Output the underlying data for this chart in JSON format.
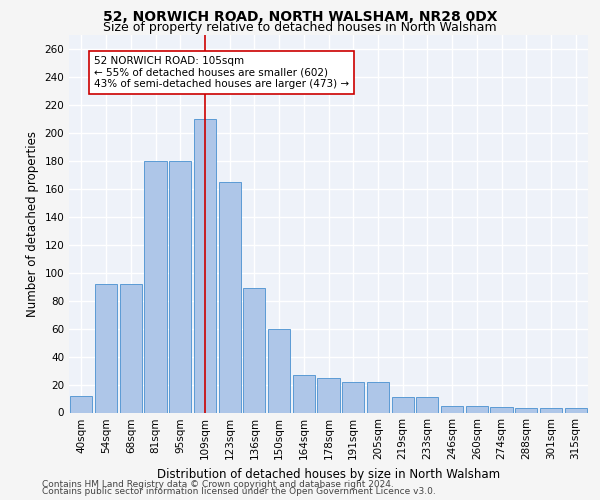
{
  "title1": "52, NORWICH ROAD, NORTH WALSHAM, NR28 0DX",
  "title2": "Size of property relative to detached houses in North Walsham",
  "xlabel": "Distribution of detached houses by size in North Walsham",
  "ylabel": "Number of detached properties",
  "categories": [
    "40sqm",
    "54sqm",
    "68sqm",
    "81sqm",
    "95sqm",
    "109sqm",
    "123sqm",
    "136sqm",
    "150sqm",
    "164sqm",
    "178sqm",
    "191sqm",
    "205sqm",
    "219sqm",
    "233sqm",
    "246sqm",
    "260sqm",
    "274sqm",
    "288sqm",
    "301sqm",
    "315sqm"
  ],
  "values": [
    12,
    92,
    92,
    180,
    180,
    210,
    165,
    89,
    60,
    27,
    25,
    22,
    22,
    11,
    11,
    5,
    5,
    4,
    3,
    3,
    3
  ],
  "bar_color": "#aec6e8",
  "bar_edge_color": "#5b9bd5",
  "red_line_index": 5,
  "annotation_line1": "52 NORWICH ROAD: 105sqm",
  "annotation_line2": "← 55% of detached houses are smaller (602)",
  "annotation_line3": "43% of semi-detached houses are larger (473) →",
  "red_line_color": "#cc0000",
  "annotation_box_color": "#ffffff",
  "annotation_box_edge_color": "#cc0000",
  "ylim": [
    0,
    270
  ],
  "yticks": [
    0,
    20,
    40,
    60,
    80,
    100,
    120,
    140,
    160,
    180,
    200,
    220,
    240,
    260
  ],
  "footer1": "Contains HM Land Registry data © Crown copyright and database right 2024.",
  "footer2": "Contains public sector information licensed under the Open Government Licence v3.0.",
  "bg_color": "#eef2f9",
  "grid_color": "#ffffff",
  "title1_fontsize": 10,
  "title2_fontsize": 9,
  "axis_label_fontsize": 8.5,
  "tick_fontsize": 7.5,
  "annotation_fontsize": 7.5,
  "footer_fontsize": 6.5
}
